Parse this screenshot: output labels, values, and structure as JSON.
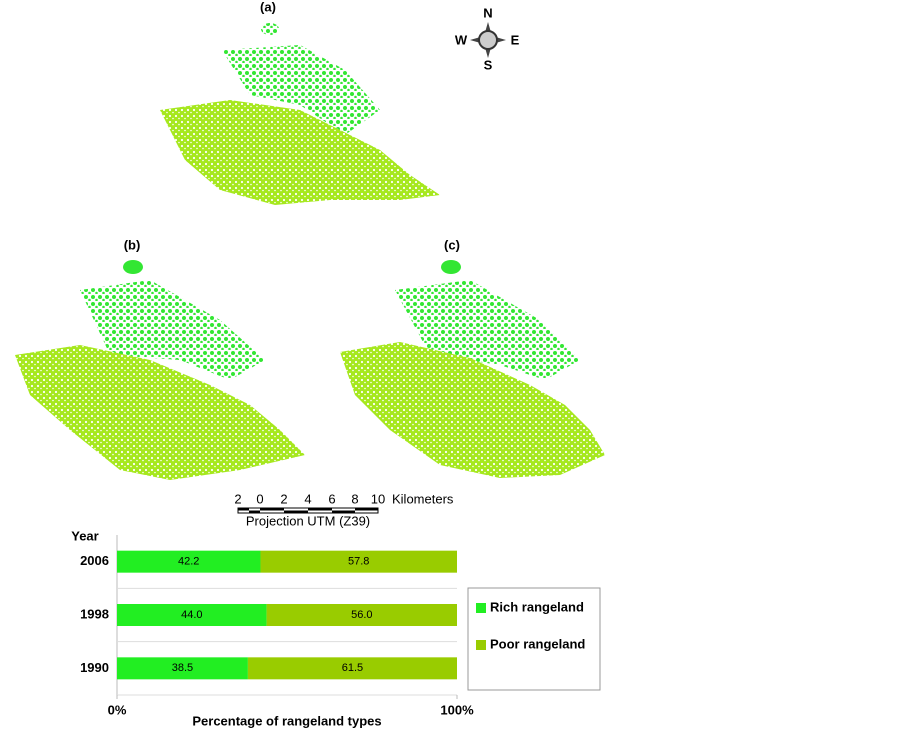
{
  "maps": {
    "panels": [
      "(a)",
      "(b)",
      "(c)"
    ],
    "compass": {
      "north": "N",
      "east": "E",
      "south": "S",
      "west": "W"
    },
    "scale_bar": {
      "labels": [
        "2",
        "0",
        "2",
        "4",
        "6",
        "8",
        "10",
        "Kilometers"
      ],
      "projection": "Projection UTM (Z39)"
    }
  },
  "chart_data": {
    "type": "bar",
    "orientation": "horizontal",
    "stacked": true,
    "y_label": "Year",
    "x_label": "Percentage of rangeland types",
    "categories": [
      "2006",
      "1998",
      "1990"
    ],
    "series": [
      {
        "name": "Rich rangeland",
        "color": "#22ee22",
        "values": [
          42.2,
          44.0,
          38.5
        ],
        "value_labels": [
          "42.2",
          "44.0",
          "38.5"
        ]
      },
      {
        "name": "Poor rangeland",
        "color": "#99cc00",
        "values": [
          57.8,
          56.0,
          61.5
        ],
        "value_labels": [
          "57.8",
          "56.0",
          "61.5"
        ]
      }
    ],
    "xlim": [
      0,
      100
    ],
    "xticks": [
      {
        "value": 0,
        "label": "0%"
      },
      {
        "value": 100,
        "label": "100%"
      }
    ],
    "legend": "right"
  }
}
